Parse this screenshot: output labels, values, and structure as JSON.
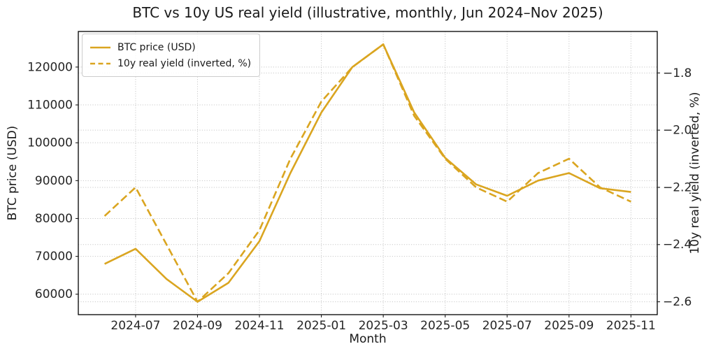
{
  "colors": {
    "series": "#DAA520",
    "grid": "#c8c8c8",
    "text": "#1a1a1a",
    "spine": "#000000"
  },
  "chart_data": {
    "type": "line",
    "title": "BTC vs 10y US real yield (illustrative, monthly, Jun 2024–Nov 2025)",
    "xlabel": "Month",
    "ylabel_left": "BTC price (USD)",
    "ylabel_right": "10y real yield (inverted, %)",
    "x": [
      "2024-06",
      "2024-07",
      "2024-08",
      "2024-09",
      "2024-10",
      "2024-11",
      "2024-12",
      "2025-01",
      "2025-02",
      "2025-03",
      "2025-04",
      "2025-05",
      "2025-06",
      "2025-07",
      "2025-08",
      "2025-09",
      "2025-10",
      "2025-11"
    ],
    "x_tick_labels": [
      "2024-07",
      "2024-09",
      "2024-11",
      "2025-01",
      "2025-03",
      "2025-05",
      "2025-07",
      "2025-09",
      "2025-11"
    ],
    "left_ticks": [
      60000,
      70000,
      80000,
      90000,
      100000,
      110000,
      120000
    ],
    "right_ticks": [
      -2.6,
      -2.4,
      -2.2,
      -2.0,
      -1.8
    ],
    "xlim_index": [
      -0.85,
      17.85
    ],
    "ylim_left": [
      54600,
      129400
    ],
    "ylim_right": [
      -2.645,
      -1.655
    ],
    "grid": true,
    "legend_position": "upper left",
    "series": [
      {
        "name": "BTC price (USD)",
        "axis": "left",
        "line_style": "solid",
        "color": "#DAA520",
        "values": [
          68000,
          72000,
          64000,
          58000,
          63000,
          74000,
          92000,
          108000,
          120000,
          126000,
          108000,
          96000,
          89000,
          86000,
          90000,
          92000,
          88000,
          87000
        ]
      },
      {
        "name": "10y real yield (inverted, %)",
        "axis": "right",
        "line_style": "dashed",
        "color": "#DAA520",
        "values": [
          -2.3,
          -2.2,
          -2.4,
          -2.6,
          -2.5,
          -2.35,
          -2.1,
          -1.9,
          -1.78,
          -1.7,
          -1.95,
          -2.1,
          -2.2,
          -2.25,
          -2.15,
          -2.1,
          -2.2,
          -2.25
        ]
      }
    ]
  }
}
